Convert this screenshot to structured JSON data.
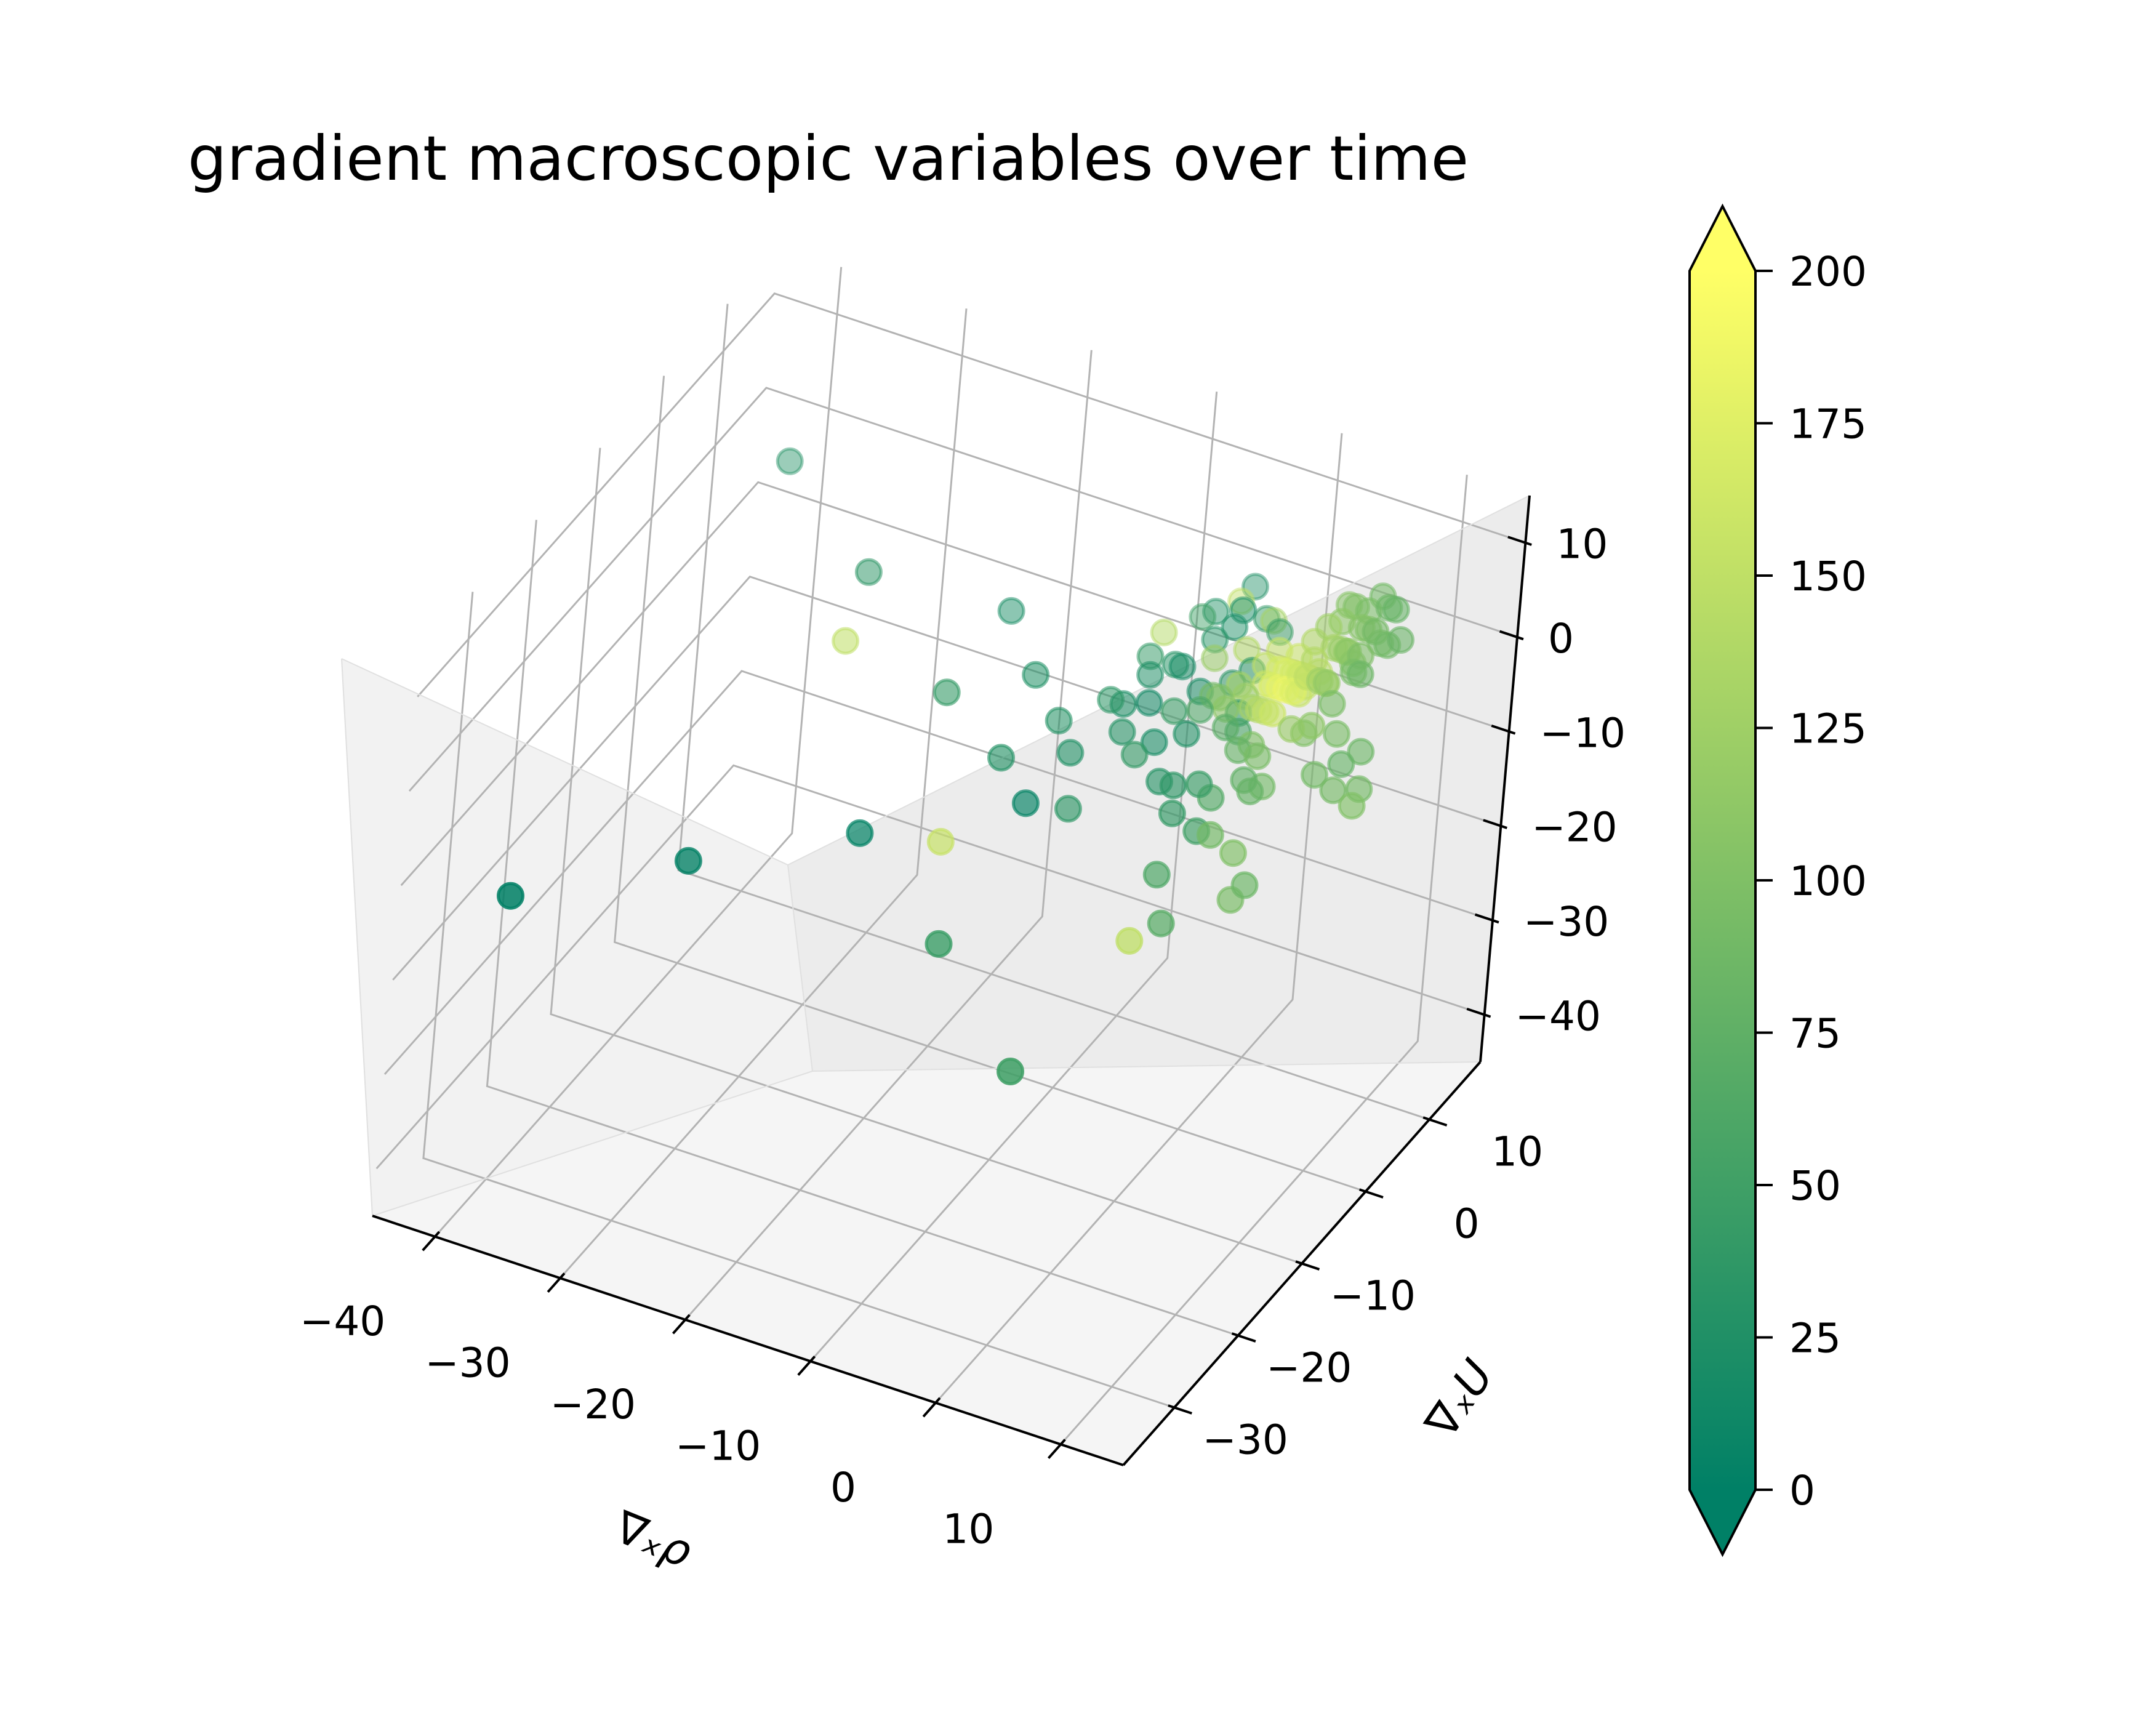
{
  "chart_data": {
    "type": "scatter",
    "projection": "3d",
    "title": "gradient macroscopic variables over time",
    "xlabel": "∇ₓρ",
    "ylabel": "∇ₓU",
    "zlabel": "",
    "xlim": [
      -45,
      15
    ],
    "ylim": [
      -38,
      18
    ],
    "zlim": [
      -45,
      15
    ],
    "x_ticks": [
      "−40",
      "−30",
      "−20",
      "−10",
      "0",
      "10"
    ],
    "y_ticks": [
      "−30",
      "−20",
      "−10",
      "0",
      "10"
    ],
    "z_ticks": [
      "−40",
      "−30",
      "−20",
      "−10",
      "0",
      "10"
    ],
    "grid": true,
    "colormap": "summer",
    "color_min": "#008066",
    "color_max": "#ffff66",
    "colorbar": {
      "range": [
        0,
        200
      ],
      "extend": "both",
      "ticks": [
        "0",
        "25",
        "50",
        "75",
        "100",
        "125",
        "150",
        "175",
        "200"
      ]
    },
    "points": [
      {
        "x": -40,
        "y": -30,
        "z": -15,
        "t": 2
      },
      {
        "x": -30,
        "y": -22,
        "z": -13,
        "t": 3
      },
      {
        "x": -20,
        "y": -15,
        "z": -11,
        "t": 4
      },
      {
        "x": -10,
        "y": -9,
        "z": -8,
        "t": 5
      },
      {
        "x": -40,
        "y": 12,
        "z": -1,
        "t": 30
      },
      {
        "x": -30,
        "y": 5,
        "z": -3,
        "t": 35
      },
      {
        "x": -20,
        "y": -2,
        "z": -6,
        "t": 40
      },
      {
        "x": -10,
        "y": -22,
        "z": -13,
        "t": 45
      },
      {
        "x": 0,
        "y": -30,
        "z": -16,
        "t": 50
      },
      {
        "x": -30,
        "y": 2,
        "z": -8,
        "t": 150
      },
      {
        "x": -15,
        "y": -12,
        "z": -12,
        "t": 155
      },
      {
        "x": -20,
        "y": 8,
        "z": -5,
        "t": 20
      },
      {
        "x": -15,
        "y": 2,
        "z": -5,
        "t": 25
      },
      {
        "x": -12,
        "y": 0,
        "z": -7,
        "t": 30
      },
      {
        "x": -14,
        "y": -5,
        "z": -8,
        "t": 28
      },
      {
        "x": -8,
        "y": 2,
        "z": -5,
        "t": 22
      },
      {
        "x": -10,
        "y": -2,
        "z": -8,
        "t": 26
      },
      {
        "x": -6,
        "y": 6,
        "z": -3,
        "t": 30
      },
      {
        "x": -8,
        "y": -6,
        "z": -10,
        "t": 35
      },
      {
        "x": -5,
        "y": -2,
        "z": -6,
        "t": 40
      },
      {
        "x": -3,
        "y": 4,
        "z": -3,
        "t": 20
      },
      {
        "x": -2,
        "y": 0,
        "z": -4,
        "t": 25
      },
      {
        "x": -4,
        "y": 8,
        "z": -1,
        "t": 30
      },
      {
        "x": -1,
        "y": 5,
        "z": -2,
        "t": 35
      },
      {
        "x": -2,
        "y": -4,
        "z": -6,
        "t": 30
      },
      {
        "x": -6,
        "y": 2,
        "z": -4,
        "t": 15
      },
      {
        "x": -5,
        "y": 5,
        "z": -2,
        "t": 18
      },
      {
        "x": -3,
        "y": 9,
        "z": 0,
        "t": 22
      },
      {
        "x": -4,
        "y": -1,
        "z": -5,
        "t": 20
      },
      {
        "x": 0,
        "y": 6,
        "z": -1,
        "t": 30
      },
      {
        "x": -1,
        "y": 10,
        "z": 1,
        "t": 40
      },
      {
        "x": 1,
        "y": 2,
        "z": -2,
        "t": 35
      },
      {
        "x": -3,
        "y": 12,
        "z": 2,
        "t": 25
      },
      {
        "x": -5,
        "y": 10,
        "z": 0,
        "t": 28
      },
      {
        "x": -7,
        "y": 4,
        "z": -3,
        "t": 24
      },
      {
        "x": -2,
        "y": 8,
        "z": 3,
        "t": 20
      },
      {
        "x": 1,
        "y": 8,
        "z": 2,
        "t": 45
      },
      {
        "x": 2,
        "y": 0,
        "z": -2,
        "t": 55
      },
      {
        "x": 3,
        "y": -8,
        "z": -6,
        "t": 50
      },
      {
        "x": 2,
        "y": -12,
        "z": -8,
        "t": 60
      },
      {
        "x": 4,
        "y": -15,
        "z": -10,
        "t": 70
      },
      {
        "x": 5,
        "y": -10,
        "z": -4,
        "t": 90
      },
      {
        "x": 6,
        "y": -6,
        "z": -2,
        "t": 80
      },
      {
        "x": 3,
        "y": -18,
        "z": -10,
        "t": 150
      },
      {
        "x": -4,
        "y": 12,
        "z": 0,
        "t": 150
      },
      {
        "x": -8,
        "y": 8,
        "z": -2,
        "t": 140
      },
      {
        "x": 0,
        "y": 4,
        "z": -1,
        "t": 130
      },
      {
        "x": 1,
        "y": 6,
        "z": 0,
        "t": 150
      },
      {
        "x": 2,
        "y": 4,
        "z": 0,
        "t": 160
      },
      {
        "x": 3,
        "y": 3,
        "z": 1,
        "t": 170
      },
      {
        "x": 4,
        "y": 2,
        "z": 2,
        "t": 180
      },
      {
        "x": 5,
        "y": 1,
        "z": 3,
        "t": 185
      },
      {
        "x": 6,
        "y": 0,
        "z": 4,
        "t": 175
      },
      {
        "x": 5,
        "y": -1,
        "z": 2,
        "t": 160
      },
      {
        "x": 4,
        "y": 0,
        "z": 1,
        "t": 150
      },
      {
        "x": 3,
        "y": 1,
        "z": 0,
        "t": 140
      },
      {
        "x": 2,
        "y": 2,
        "z": -1,
        "t": 130
      },
      {
        "x": 1,
        "y": 3,
        "z": -1,
        "t": 120
      },
      {
        "x": 0,
        "y": 2,
        "z": -2,
        "t": 110
      },
      {
        "x": -1,
        "y": 3,
        "z": -2,
        "t": 100
      },
      {
        "x": -2,
        "y": 4,
        "z": -3,
        "t": 90
      },
      {
        "x": 3,
        "y": 4,
        "z": 2,
        "t": 165
      },
      {
        "x": 4,
        "y": 3,
        "z": 3,
        "t": 170
      },
      {
        "x": 5,
        "y": 2,
        "z": 4,
        "t": 165
      },
      {
        "x": 6,
        "y": 1,
        "z": 5,
        "t": 160
      },
      {
        "x": 7,
        "y": 0,
        "z": 6,
        "t": 150
      },
      {
        "x": 7,
        "y": 1,
        "z": 7,
        "t": 140
      },
      {
        "x": 8,
        "y": 2,
        "z": 8,
        "t": 130
      },
      {
        "x": 8,
        "y": 0,
        "z": 6,
        "t": 125
      },
      {
        "x": 9,
        "y": 1,
        "z": 9,
        "t": 120
      },
      {
        "x": 9,
        "y": -1,
        "z": 7,
        "t": 115
      },
      {
        "x": 10,
        "y": 0,
        "z": 10,
        "t": 110
      },
      {
        "x": 10,
        "y": 2,
        "z": 11,
        "t": 105
      },
      {
        "x": 11,
        "y": 1,
        "z": 12,
        "t": 100
      },
      {
        "x": 11,
        "y": -1,
        "z": 9,
        "t": 95
      },
      {
        "x": 12,
        "y": 0,
        "z": 13,
        "t": 90
      },
      {
        "x": 12,
        "y": 2,
        "z": 14,
        "t": 85
      },
      {
        "x": 9,
        "y": 3,
        "z": 12,
        "t": 100
      },
      {
        "x": 10,
        "y": -2,
        "z": 6,
        "t": 95
      },
      {
        "x": 8,
        "y": 3,
        "z": 10,
        "t": 110
      },
      {
        "x": 13,
        "y": 1,
        "z": 15,
        "t": 80
      },
      {
        "x": 12,
        "y": -2,
        "z": 10,
        "t": 85
      },
      {
        "x": 6,
        "y": 3,
        "z": 7,
        "t": 140
      },
      {
        "x": 7,
        "y": 3,
        "z": 9,
        "t": 125
      },
      {
        "x": 11,
        "y": 3,
        "z": 14,
        "t": 90
      },
      {
        "x": 8,
        "y": -2,
        "z": 2,
        "t": 100
      },
      {
        "x": 10,
        "y": -4,
        "z": 0,
        "t": 90
      },
      {
        "x": 12,
        "y": -4,
        "z": 2,
        "t": 80
      },
      {
        "x": 13,
        "y": -3,
        "z": 3,
        "t": 85
      },
      {
        "x": 14,
        "y": -5,
        "z": 1,
        "t": 90
      },
      {
        "x": 11,
        "y": -3,
        "z": 4,
        "t": 95
      },
      {
        "x": 14,
        "y": -6,
        "z": 0,
        "t": 100
      },
      {
        "x": 12,
        "y": -5,
        "z": 0,
        "t": 92
      },
      {
        "x": 4,
        "y": -2,
        "z": -1,
        "t": 100
      },
      {
        "x": 5,
        "y": -3,
        "z": -1,
        "t": 95
      },
      {
        "x": 6,
        "y": -4,
        "z": -3,
        "t": 90
      },
      {
        "x": 6,
        "y": -8,
        "z": -7,
        "t": 100
      },
      {
        "x": 7,
        "y": -10,
        "z": -10,
        "t": 95
      },
      {
        "x": 8,
        "y": -10,
        "z": -8,
        "t": 85
      },
      {
        "x": 3,
        "y": -6,
        "z": -4,
        "t": 65
      },
      {
        "x": 1,
        "y": -8,
        "z": -5,
        "t": 40
      },
      {
        "x": 0,
        "y": -6,
        "z": -4,
        "t": 35
      },
      {
        "x": 2,
        "y": -6,
        "z": -3,
        "t": 45
      },
      {
        "x": 5,
        "y": -5,
        "z": -2,
        "t": 75
      },
      {
        "x": 6,
        "y": 2,
        "z": 3,
        "t": 150
      },
      {
        "x": 4,
        "y": 5,
        "z": 3,
        "t": 160
      },
      {
        "x": 2,
        "y": 6,
        "z": 2,
        "t": 155
      },
      {
        "x": -1,
        "y": 7,
        "z": 0,
        "t": 140
      },
      {
        "x": -3,
        "y": 6,
        "z": -1,
        "t": 120
      },
      {
        "x": 0,
        "y": 9,
        "z": 2,
        "t": 130
      },
      {
        "x": -6,
        "y": 10,
        "z": -1,
        "t": 50
      },
      {
        "x": -8,
        "y": 6,
        "z": -3,
        "t": 40
      },
      {
        "x": -9,
        "y": 2,
        "z": -5,
        "t": 35
      },
      {
        "x": -7,
        "y": 0,
        "z": -6,
        "t": 30
      },
      {
        "x": -4,
        "y": 2,
        "z": -4,
        "t": 45
      },
      {
        "x": -2,
        "y": 2,
        "z": -3,
        "t": 60
      },
      {
        "x": 1,
        "y": 0,
        "z": -2,
        "t": 70
      },
      {
        "x": 3,
        "y": -2,
        "z": -2,
        "t": 80
      },
      {
        "x": 7,
        "y": -2,
        "z": 2,
        "t": 120
      },
      {
        "x": 9,
        "y": -3,
        "z": 4,
        "t": 110
      },
      {
        "x": 8,
        "y": 1,
        "z": 5,
        "t": 135
      },
      {
        "x": 6,
        "y": 1,
        "z": 3,
        "t": 155
      },
      {
        "x": 5,
        "y": 3,
        "z": 3,
        "t": 165
      },
      {
        "x": 7,
        "y": 2,
        "z": 5,
        "t": 145
      },
      {
        "x": 9,
        "y": 2,
        "z": 8,
        "t": 115
      },
      {
        "x": 10,
        "y": 1,
        "z": 8,
        "t": 105
      },
      {
        "x": 11,
        "y": 0,
        "z": 10,
        "t": 98
      },
      {
        "x": 13,
        "y": 0,
        "z": 12,
        "t": 88
      },
      {
        "x": 12,
        "y": 1,
        "z": 11,
        "t": 92
      },
      {
        "x": 10,
        "y": 3,
        "z": 12,
        "t": 96
      },
      {
        "x": 14,
        "y": 0,
        "z": 13,
        "t": 82
      },
      {
        "x": 8,
        "y": 4,
        "z": 11,
        "t": 105
      }
    ]
  }
}
